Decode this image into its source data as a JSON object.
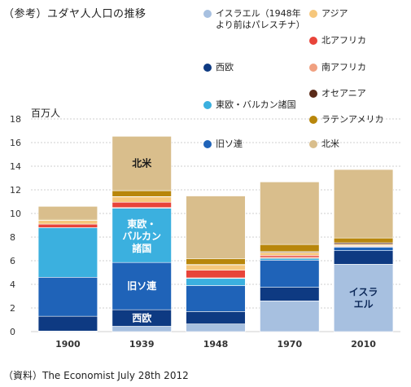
{
  "title": "（参考）ユダヤ人人口の推移",
  "source": "（資料）The Economist July 28th 2012",
  "chart_data": {
    "type": "bar",
    "stacked": true,
    "unit_label": "百万人",
    "categories": [
      "1900",
      "1939",
      "1948",
      "1970",
      "2010"
    ],
    "ylim": [
      0,
      18
    ],
    "yticks": [
      0,
      2,
      4,
      6,
      8,
      10,
      12,
      14,
      16,
      18
    ],
    "grid": true,
    "series": [
      {
        "name": "イスラエル（1948年より前はパレスチナ）",
        "color": "#a7c0e0",
        "values": [
          0.05,
          0.45,
          0.65,
          2.6,
          5.7
        ]
      },
      {
        "name": "西欧",
        "color": "#0e3a82",
        "values": [
          1.25,
          1.4,
          1.05,
          1.15,
          1.15
        ]
      },
      {
        "name": "旧ソ連",
        "color": "#1f63b8",
        "values": [
          3.3,
          4.0,
          2.2,
          2.3,
          0.3
        ]
      },
      {
        "name": "東欧・バルカン諸国",
        "color": "#3bb0df",
        "values": [
          4.2,
          4.6,
          0.6,
          0.15,
          0.05
        ]
      },
      {
        "name": "南アフリカ",
        "color": "#f0a080",
        "values": [
          0.0,
          0.05,
          0.05,
          0.1,
          0.08
        ]
      },
      {
        "name": "北アフリカ",
        "color": "#e8443a",
        "values": [
          0.3,
          0.45,
          0.65,
          0.15,
          0.02
        ]
      },
      {
        "name": "アジア",
        "color": "#f6c77c",
        "values": [
          0.3,
          0.45,
          0.45,
          0.25,
          0.1
        ]
      },
      {
        "name": "オセアニア",
        "color": "#5a2a18",
        "values": [
          0.02,
          0.03,
          0.03,
          0.07,
          0.12
        ]
      },
      {
        "name": "ラテンアメリカ",
        "color": "#b8860b",
        "values": [
          0.08,
          0.5,
          0.5,
          0.6,
          0.4
        ]
      },
      {
        "name": "北米",
        "color": "#d9be8c",
        "values": [
          1.1,
          4.6,
          5.3,
          5.3,
          5.8
        ]
      }
    ],
    "bar_annotations": [
      {
        "category": "1939",
        "series": "北米",
        "text": "北米"
      },
      {
        "category": "1939",
        "series": "旧ソ連",
        "text": "旧ソ連"
      },
      {
        "category": "1939",
        "series": "東欧・バルカン諸国",
        "text": "東欧・バルカン諸国"
      },
      {
        "category": "1939",
        "series": "西欧",
        "text": "西欧"
      },
      {
        "category": "2010",
        "series": "イスラエル（1948年より前はパレスチナ）",
        "text": "イスラエル"
      }
    ]
  }
}
